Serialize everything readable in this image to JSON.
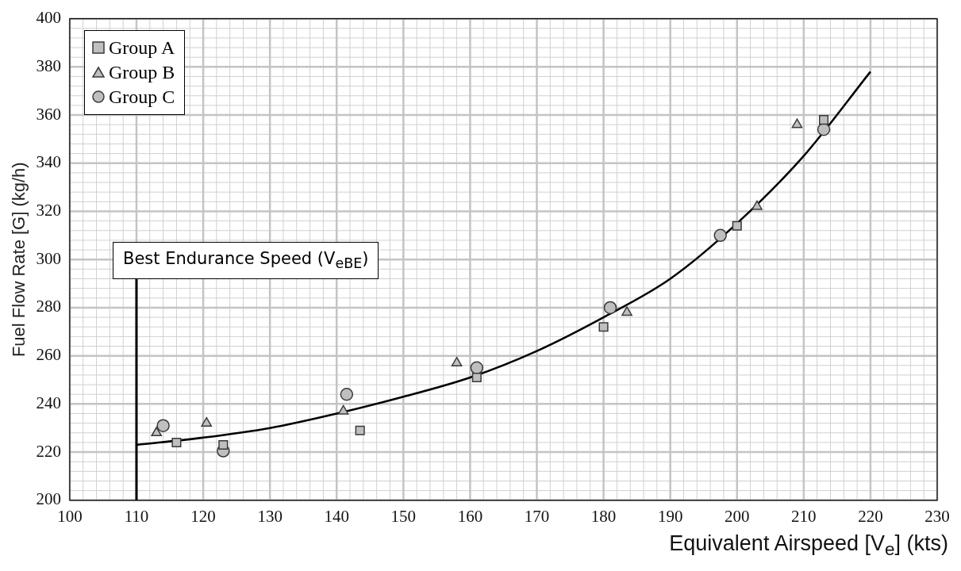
{
  "chart_data": {
    "type": "scatter",
    "xlabel": "Equivalent Airspeed [V$_{e}$] (kts)",
    "ylabel": "Fuel Flow Rate [G] (kg/h)",
    "xlim": [
      100,
      230
    ],
    "xticks": [
      100,
      110,
      120,
      130,
      140,
      150,
      160,
      170,
      180,
      190,
      200,
      210,
      220,
      230
    ],
    "ylim": [
      200,
      400
    ],
    "yticks": [
      200,
      220,
      240,
      260,
      280,
      300,
      320,
      340,
      360,
      380,
      400
    ],
    "grid": true,
    "legend": "top left",
    "series": [
      {
        "name": "Group A",
        "color": "#bfbfbf",
        "marker": "square",
        "x": [
          116,
          123,
          143.5,
          161,
          180,
          200,
          213
        ],
        "values": [
          224,
          223,
          229,
          251,
          272,
          314,
          358
        ]
      },
      {
        "name": "Group B",
        "color": "#bfbfbf",
        "marker": "triangle",
        "x": [
          113,
          120.5,
          141,
          158,
          183.5,
          203,
          209
        ],
        "values": [
          228,
          232,
          237,
          257,
          278,
          322,
          356
        ]
      },
      {
        "name": "Group C",
        "color": "#bfbfbf",
        "marker": "circle",
        "x": [
          114,
          123,
          141.5,
          161,
          181,
          197.5,
          213
        ],
        "values": [
          231,
          220.5,
          244,
          255,
          280,
          310,
          354
        ]
      },
      {
        "type": "line",
        "color": "#000000",
        "marker": "none",
        "x": [
          110,
          120,
          130,
          140,
          150,
          160,
          170,
          180,
          190,
          200,
          210,
          220
        ],
        "values": [
          223,
          226,
          230,
          236,
          243,
          251,
          262,
          276,
          292,
          315,
          343,
          378
        ]
      }
    ],
    "ref_lines": [
      {
        "axis": "x",
        "value": 110,
        "label": "Best Endurance Speed (V$_{eBE}$)",
        "color": "#000000"
      }
    ]
  }
}
